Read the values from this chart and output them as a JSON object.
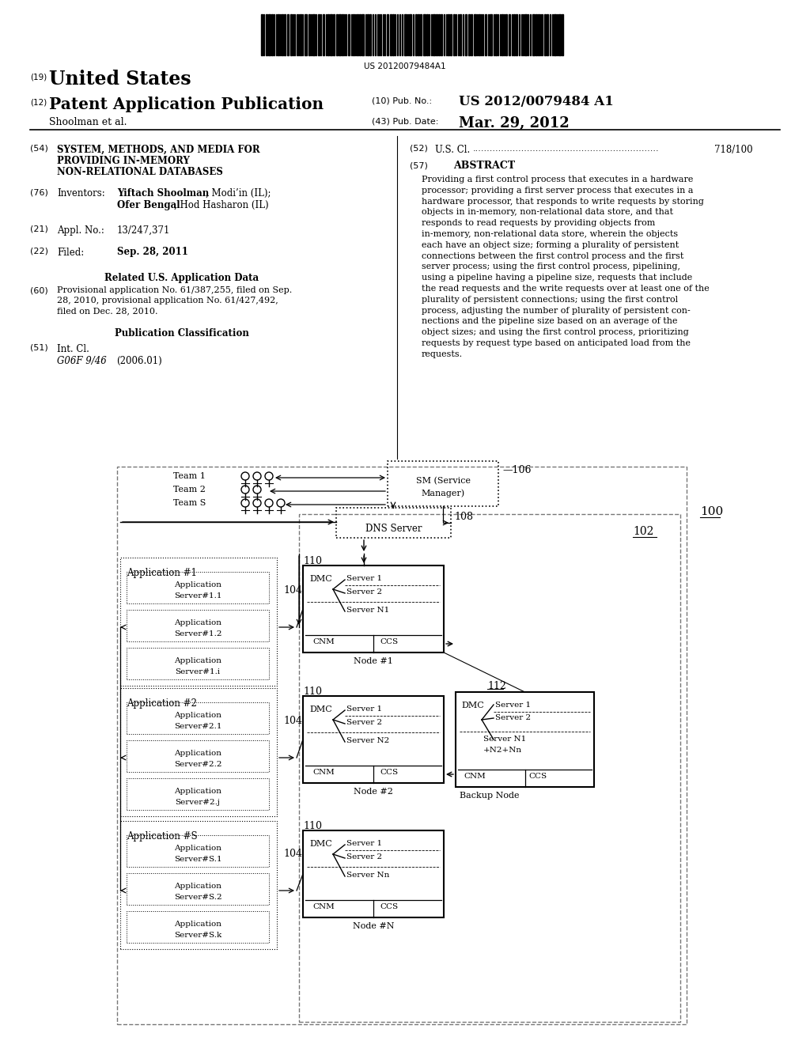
{
  "background_color": "#ffffff",
  "barcode_text": "US 20120079484A1",
  "title_19": "(19)",
  "title_us": "United States",
  "title_12": "(12)",
  "title_pub": "Patent Application Publication",
  "title_10": "(10) Pub. No.:",
  "pub_no": "US 2012/0079484 A1",
  "title_shoolman": "Shoolman et al.",
  "title_43": "(43) Pub. Date:",
  "pub_date": "Mar. 29, 2012",
  "field54": "(54)",
  "title54_1": "SYSTEM, METHODS, AND MEDIA FOR",
  "title54_2": "PROVIDING IN-MEMORY",
  "title54_3": "NON-RELATIONAL DATABASES",
  "field76": "(76)",
  "label76": "Inventors:",
  "inv1_bold": "Yiftach Shoolman",
  "inv1_rest": ", Modi’in (IL);",
  "inv2_bold": "Ofer Bengal",
  "inv2_rest": ", Hod Hasharon (IL)",
  "field21": "(21)",
  "label21": "Appl. No.:",
  "appl_no": "13/247,371",
  "field22": "(22)",
  "label22": "Filed:",
  "filed": "Sep. 28, 2011",
  "related_title": "Related U.S. Application Data",
  "field60": "(60)",
  "rel1": "Provisional application No. 61/387,255, filed on Sep.",
  "rel2": "28, 2010, provisional application No. 61/427,492,",
  "rel3": "filed on Dec. 28, 2010.",
  "pub_class_title": "Publication Classification",
  "field51": "(51)",
  "label51": "Int. Cl.",
  "int_cl": "G06F 9/46",
  "int_cl_year": "(2006.01)",
  "field52": "(52)",
  "label52": "U.S. Cl.",
  "us_cl_dots": "718/100",
  "field57": "(57)",
  "abstract_title": "ABSTRACT",
  "abstract_lines": [
    "Providing a first control process that executes in a hardware",
    "processor; providing a first server process that executes in a",
    "hardware processor, that responds to write requests by storing",
    "objects in in-memory, non-relational data store, and that",
    "responds to read requests by providing objects from",
    "in-memory, non-relational data store, wherein the objects",
    "each have an object size; forming a plurality of persistent",
    "connections between the first control process and the first",
    "server process; using the first control process, pipelining,",
    "using a pipeline having a pipeline size, requests that include",
    "the read requests and the write requests over at least one of the",
    "plurality of persistent connections; using the first control",
    "process, adjusting the number of plurality of persistent con-",
    "nections and the pipeline size based on an average of the",
    "object sizes; and using the first control process, prioritizing",
    "requests by request type based on anticipated load from the",
    "requests."
  ]
}
